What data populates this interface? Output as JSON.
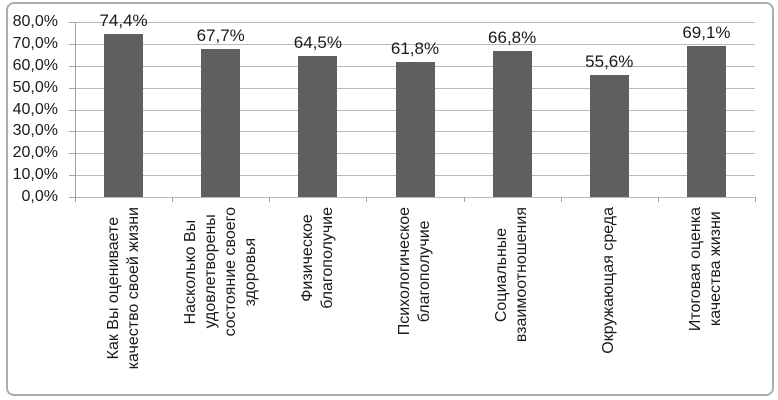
{
  "chart_data": {
    "type": "bar",
    "title": "",
    "xlabel": "",
    "ylabel": "",
    "categories": [
      "Как Вы оцениваете\nкачество своей жизни",
      "Насколько Вы\nудовлетворены\nсостояние своего\nздоровья",
      "Физическое\nблагополучие",
      "Психологическое\nблагополучие",
      "Социальные\nвзаимоотношения",
      "Окружающая среда",
      "Итоговая оценка\nкачества жизни"
    ],
    "values": [
      74.4,
      67.7,
      64.5,
      61.8,
      66.8,
      55.6,
      69.1
    ],
    "value_labels": [
      "74,4%",
      "67,7%",
      "64,5%",
      "61,8%",
      "66,8%",
      "55,6%",
      "69,1%"
    ],
    "y_tick_values": [
      0,
      10,
      20,
      30,
      40,
      50,
      60,
      70,
      80
    ],
    "y_tick_labels": [
      "0,0%",
      "10,0%",
      "20,0%",
      "30,0%",
      "40,0%",
      "50,0%",
      "60,0%",
      "70,0%",
      "80,0%"
    ],
    "ylim": [
      0,
      80
    ],
    "grid": true,
    "legend_position": "none"
  },
  "colors": {
    "bar": "#5f5f5f",
    "gridline": "#b9b9b9",
    "axis": "#a3a3a3",
    "frame_border": "#acacac",
    "text": "#1a1a1a",
    "background": "#ffffff"
  }
}
